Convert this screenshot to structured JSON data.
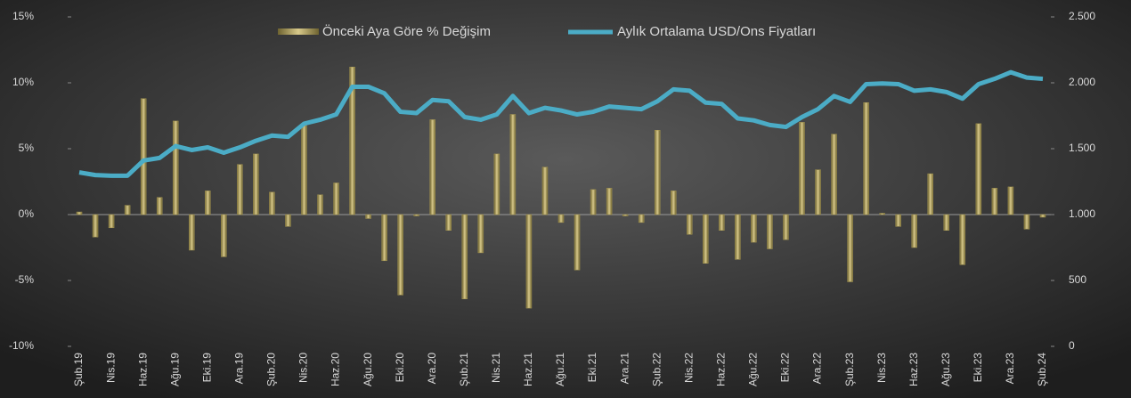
{
  "chart_data": {
    "type": "combo",
    "categories": [
      "Şub.19",
      null,
      "Nis.19",
      null,
      "Haz.19",
      null,
      "Ağu.19",
      null,
      "Eki.19",
      null,
      "Ara.19",
      null,
      "Şub.20",
      null,
      "Nis.20",
      null,
      "Haz.20",
      null,
      "Ağu.20",
      null,
      "Eki.20",
      null,
      "Ara.20",
      null,
      "Şub.21",
      null,
      "Nis.21",
      null,
      "Haz.21",
      null,
      "Ağu.21",
      null,
      "Eki.21",
      null,
      "Ara.21",
      null,
      "Şub.22",
      null,
      "Nis.22",
      null,
      "Haz.22",
      null,
      "Ağu.22",
      null,
      "Eki.22",
      null,
      "Ara.22",
      null,
      "Şub.23",
      null,
      "Nis.23",
      null,
      "Haz.23",
      null,
      "Ağu.23",
      null,
      "Eki.23",
      null,
      "Ara.23",
      null,
      "Şub.24"
    ],
    "series": [
      {
        "name": "Önceki Aya Göre % Değişim",
        "type": "bar",
        "color": "#a3944f",
        "values": [
          0.2,
          -1.7,
          -1.0,
          0.7,
          8.8,
          1.3,
          7.1,
          -2.7,
          1.8,
          -3.2,
          3.8,
          4.6,
          1.7,
          -0.9,
          6.9,
          1.5,
          2.4,
          11.2,
          -0.3,
          -3.5,
          -6.1,
          -0.1,
          7.2,
          -1.2,
          -6.4,
          -2.9,
          4.6,
          7.6,
          -7.1,
          3.6,
          -0.6,
          -4.2,
          1.9,
          2.0,
          -0.1,
          -0.6,
          6.4,
          1.8,
          -1.5,
          -3.7,
          -1.2,
          -3.4,
          -2.1,
          -2.6,
          -1.9,
          7.0,
          3.4,
          6.1,
          -5.1,
          8.5,
          0.1,
          -0.9,
          -2.5,
          3.1,
          -1.2,
          -3.8,
          6.9,
          2.0,
          2.1,
          -1.1,
          -0.2
        ]
      },
      {
        "name": "Aylık Ortalama USD/Ons Fiyatları",
        "type": "line",
        "axis": "y2",
        "color": "#4bacc6",
        "values": [
          1320,
          1300,
          1295,
          1295,
          1410,
          1430,
          1520,
          1490,
          1510,
          1470,
          1510,
          1560,
          1600,
          1590,
          1690,
          1720,
          1760,
          1970,
          1970,
          1920,
          1780,
          1770,
          1870,
          1860,
          1740,
          1720,
          1760,
          1900,
          1770,
          1810,
          1790,
          1760,
          1780,
          1820,
          1810,
          1800,
          1860,
          1950,
          1940,
          1850,
          1840,
          1730,
          1715,
          1680,
          1665,
          1740,
          1800,
          1900,
          1855,
          1990,
          1995,
          1990,
          1940,
          1950,
          1930,
          1880,
          1990,
          2030,
          2080,
          2040,
          2030
        ]
      }
    ],
    "ylim": [
      -10,
      15
    ],
    "yticks": [
      {
        "value": -10,
        "label": "-10%"
      },
      {
        "value": -5,
        "label": "-5%"
      },
      {
        "value": 0,
        "label": "0%"
      },
      {
        "value": 5,
        "label": "5%"
      },
      {
        "value": 10,
        "label": "10%"
      },
      {
        "value": 15,
        "label": "15%"
      }
    ],
    "y2lim": [
      0,
      2500
    ],
    "y2ticks": [
      0,
      500,
      {
        "value": 1000,
        "label": "1.000"
      },
      {
        "value": 1500,
        "label": "1.500"
      },
      {
        "value": 2000,
        "label": "2.000"
      },
      {
        "value": 2500,
        "label": "2.500"
      }
    ],
    "legend": "top"
  }
}
